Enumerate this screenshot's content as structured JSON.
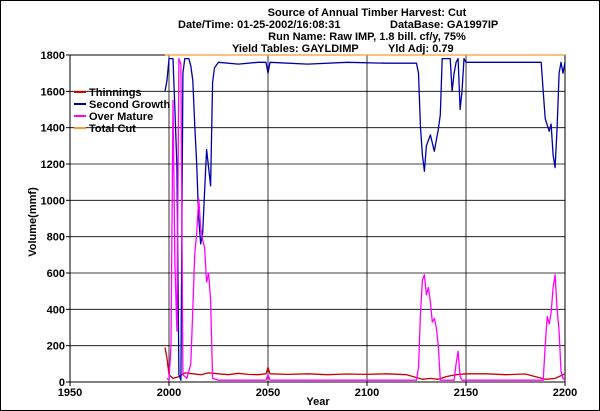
{
  "header": {
    "title": "Source of Annual Timber Harvest: Cut",
    "datetime": "Date/Time: 01-25-2002/16:08:31",
    "database": "DataBase: GA1997IP",
    "run_name": "Run Name: Raw IMP, 1.8 bill. cf/y, 75%",
    "yield_tables": "Yield Tables: GAYLDIMP",
    "yld_adj": "Yld Adj: 0.79"
  },
  "chart_data": {
    "type": "line",
    "xlabel": "Year",
    "ylabel": "Volume(mmf)",
    "xlim": [
      1950,
      2200
    ],
    "ylim": [
      0,
      1800
    ],
    "xticks": [
      1950,
      2000,
      2050,
      2100,
      2150,
      2200
    ],
    "yticks": [
      0,
      200,
      400,
      600,
      800,
      1000,
      1200,
      1400,
      1600,
      1800
    ],
    "grid": true,
    "legend_position": "top-left",
    "series": [
      {
        "name": "Thinnings",
        "color": "#cc0000",
        "points": [
          [
            1998,
            190
          ],
          [
            1999,
            130
          ],
          [
            2000,
            40
          ],
          [
            2002,
            20
          ],
          [
            2005,
            30
          ],
          [
            2008,
            50
          ],
          [
            2012,
            45
          ],
          [
            2016,
            40
          ],
          [
            2020,
            50
          ],
          [
            2025,
            45
          ],
          [
            2030,
            40
          ],
          [
            2035,
            48
          ],
          [
            2040,
            42
          ],
          [
            2045,
            40
          ],
          [
            2049,
            45
          ],
          [
            2050,
            80
          ],
          [
            2051,
            45
          ],
          [
            2060,
            42
          ],
          [
            2070,
            45
          ],
          [
            2080,
            40
          ],
          [
            2090,
            44
          ],
          [
            2100,
            42
          ],
          [
            2110,
            45
          ],
          [
            2120,
            40
          ],
          [
            2128,
            15
          ],
          [
            2132,
            20
          ],
          [
            2136,
            15
          ],
          [
            2140,
            30
          ],
          [
            2145,
            40
          ],
          [
            2150,
            45
          ],
          [
            2160,
            45
          ],
          [
            2170,
            40
          ],
          [
            2180,
            44
          ],
          [
            2190,
            15
          ],
          [
            2195,
            20
          ],
          [
            2200,
            45
          ]
        ]
      },
      {
        "name": "Second Growth",
        "color": "#0000aa",
        "points": [
          [
            1998,
            1600
          ],
          [
            1999,
            1660
          ],
          [
            2000,
            1780
          ],
          [
            2002,
            1780
          ],
          [
            2003,
            1500
          ],
          [
            2004,
            1190
          ],
          [
            2005,
            40
          ],
          [
            2006,
            10
          ],
          [
            2007,
            1700
          ],
          [
            2008,
            1780
          ],
          [
            2010,
            1780
          ],
          [
            2011,
            1740
          ],
          [
            2012,
            1660
          ],
          [
            2013,
            1420
          ],
          [
            2014,
            1200
          ],
          [
            2015,
            900
          ],
          [
            2016,
            760
          ],
          [
            2017,
            820
          ],
          [
            2018,
            1050
          ],
          [
            2019,
            1280
          ],
          [
            2020,
            1180
          ],
          [
            2021,
            1080
          ],
          [
            2022,
            1650
          ],
          [
            2023,
            1730
          ],
          [
            2025,
            1760
          ],
          [
            2035,
            1750
          ],
          [
            2045,
            1760
          ],
          [
            2049,
            1760
          ],
          [
            2050,
            1700
          ],
          [
            2051,
            1760
          ],
          [
            2070,
            1750
          ],
          [
            2090,
            1760
          ],
          [
            2110,
            1755
          ],
          [
            2125,
            1755
          ],
          [
            2126,
            1700
          ],
          [
            2127,
            1400
          ],
          [
            2128,
            1250
          ],
          [
            2129,
            1160
          ],
          [
            2130,
            1300
          ],
          [
            2132,
            1360
          ],
          [
            2134,
            1270
          ],
          [
            2136,
            1390
          ],
          [
            2137,
            1470
          ],
          [
            2138,
            1780
          ],
          [
            2142,
            1780
          ],
          [
            2143,
            1600
          ],
          [
            2144,
            1700
          ],
          [
            2145,
            1760
          ],
          [
            2146,
            1780
          ],
          [
            2147,
            1500
          ],
          [
            2148,
            1600
          ],
          [
            2149,
            1780
          ],
          [
            2150,
            1760
          ],
          [
            2170,
            1760
          ],
          [
            2188,
            1760
          ],
          [
            2189,
            1600
          ],
          [
            2190,
            1450
          ],
          [
            2192,
            1380
          ],
          [
            2193,
            1420
          ],
          [
            2194,
            1250
          ],
          [
            2195,
            1180
          ],
          [
            2196,
            1400
          ],
          [
            2197,
            1700
          ],
          [
            2198,
            1760
          ],
          [
            2199,
            1700
          ],
          [
            2200,
            1760
          ]
        ]
      },
      {
        "name": "Over Mature",
        "color": "#ff00ff",
        "points": [
          [
            1999,
            20
          ],
          [
            2000,
            10
          ],
          [
            2001,
            200
          ],
          [
            2002,
            1550
          ],
          [
            2003,
            650
          ],
          [
            2004,
            280
          ],
          [
            2005,
            1780
          ],
          [
            2006,
            1750
          ],
          [
            2007,
            40
          ],
          [
            2009,
            20
          ],
          [
            2011,
            100
          ],
          [
            2012,
            400
          ],
          [
            2013,
            700
          ],
          [
            2014,
            820
          ],
          [
            2015,
            1010
          ],
          [
            2016,
            850
          ],
          [
            2017,
            780
          ],
          [
            2018,
            740
          ],
          [
            2019,
            550
          ],
          [
            2020,
            600
          ],
          [
            2021,
            450
          ],
          [
            2022,
            20
          ],
          [
            2025,
            10
          ],
          [
            2049,
            10
          ],
          [
            2050,
            40
          ],
          [
            2051,
            10
          ],
          [
            2125,
            10
          ],
          [
            2126,
            80
          ],
          [
            2127,
            380
          ],
          [
            2128,
            560
          ],
          [
            2129,
            590
          ],
          [
            2130,
            480
          ],
          [
            2131,
            520
          ],
          [
            2132,
            440
          ],
          [
            2133,
            330
          ],
          [
            2134,
            350
          ],
          [
            2135,
            300
          ],
          [
            2136,
            200
          ],
          [
            2137,
            10
          ],
          [
            2144,
            10
          ],
          [
            2145,
            100
          ],
          [
            2146,
            170
          ],
          [
            2147,
            30
          ],
          [
            2148,
            10
          ],
          [
            2189,
            10
          ],
          [
            2190,
            200
          ],
          [
            2191,
            360
          ],
          [
            2192,
            320
          ],
          [
            2193,
            380
          ],
          [
            2194,
            520
          ],
          [
            2195,
            590
          ],
          [
            2196,
            400
          ],
          [
            2197,
            280
          ],
          [
            2198,
            60
          ],
          [
            2199,
            20
          ],
          [
            2200,
            10
          ]
        ]
      },
      {
        "name": "Total Cut",
        "color": "#ff9933",
        "points": [
          [
            1998,
            1800
          ],
          [
            2200,
            1800
          ]
        ]
      }
    ]
  }
}
